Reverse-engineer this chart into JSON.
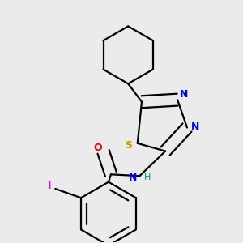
{
  "background_color": "#ebebeb",
  "atom_colors": {
    "S": "#c8a000",
    "N": "#0000ee",
    "O": "#ee0000",
    "I": "#ee00ee",
    "C": "#000000",
    "H": "#008888"
  },
  "bond_color": "#000000",
  "bond_width": 1.6
}
